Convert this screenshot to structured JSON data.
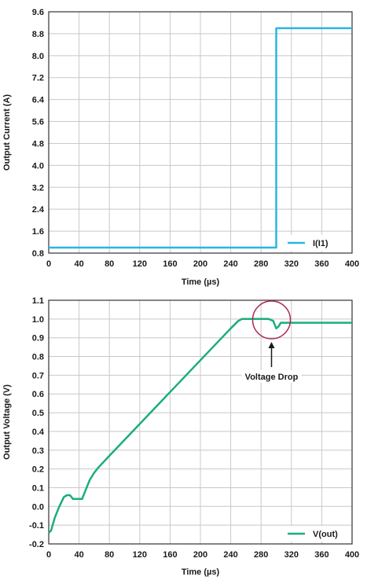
{
  "colors": {
    "current": "#29b6e0",
    "voltage": "#1aae7a",
    "grid": "#c8c8c8",
    "axis": "#333333",
    "annotation": "#b0264a"
  },
  "chart_data": [
    {
      "type": "line",
      "xlabel": "Time (µs)",
      "ylabel": "Output Current (A)",
      "xlim": [
        0,
        400
      ],
      "ylim": [
        0.8,
        9.6
      ],
      "xticks": [
        0,
        40,
        80,
        120,
        160,
        200,
        240,
        280,
        320,
        360,
        400
      ],
      "yticks": [
        "0.8",
        "1.6",
        "2.4",
        "3.2",
        "4.0",
        "4.8",
        "5.6",
        "6.4",
        "7.2",
        "8.0",
        "8.8",
        "9.6"
      ],
      "grid": true,
      "legend": "bottom-right",
      "series": [
        {
          "name": "I(I1)",
          "x": [
            0,
            300,
            300,
            400
          ],
          "y": [
            1.0,
            1.0,
            9.0,
            9.0
          ]
        }
      ]
    },
    {
      "type": "line",
      "xlabel": "Time (µs)",
      "ylabel": "Output Voltage (V)",
      "xlim": [
        0,
        400
      ],
      "ylim": [
        -0.2,
        1.1
      ],
      "xticks": [
        0,
        40,
        80,
        120,
        160,
        200,
        240,
        280,
        320,
        360,
        400
      ],
      "yticks": [
        "-0.2",
        "-0.1",
        "0.0",
        "0.1",
        "0.2",
        "0.3",
        "0.4",
        "0.5",
        "0.6",
        "0.7",
        "0.8",
        "0.9",
        "1.0",
        "1.1"
      ],
      "grid": true,
      "legend": "bottom-right",
      "annotation": {
        "text": "Voltage Drop",
        "x": 300,
        "y": 0.97
      },
      "series": [
        {
          "name": "V(out)",
          "x": [
            0,
            3,
            8,
            14,
            20,
            24,
            28,
            32,
            36,
            40,
            44,
            48,
            54,
            60,
            66,
            80,
            120,
            160,
            200,
            240,
            250,
            255,
            280,
            290,
            296,
            300,
            303,
            306,
            310,
            320,
            360,
            400
          ],
          "y": [
            -0.14,
            -0.13,
            -0.06,
            0.0,
            0.05,
            0.06,
            0.06,
            0.04,
            0.04,
            0.04,
            0.04,
            0.08,
            0.14,
            0.18,
            0.21,
            0.27,
            0.44,
            0.61,
            0.78,
            0.95,
            0.99,
            1.0,
            1.0,
            1.0,
            0.99,
            0.95,
            0.96,
            0.98,
            0.98,
            0.98,
            0.98,
            0.98
          ]
        }
      ]
    }
  ]
}
